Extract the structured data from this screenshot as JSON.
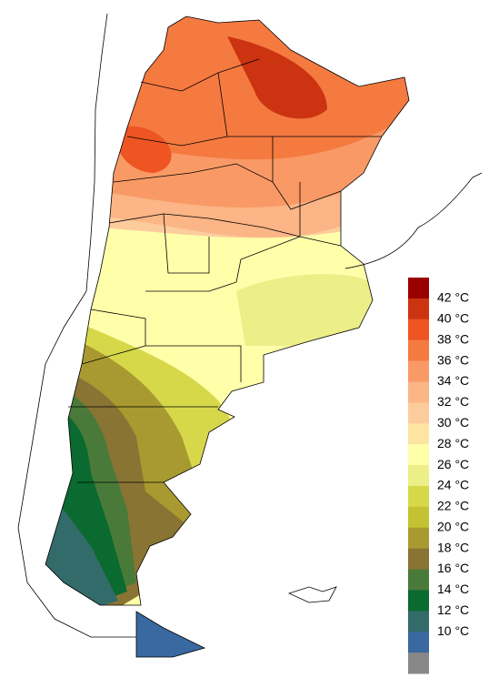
{
  "legend": {
    "labels": [
      "42 °C",
      "40 °C",
      "38 °C",
      "36 °C",
      "34 °C",
      "32 °C",
      "30 °C",
      "28 °C",
      "26 °C",
      "24 °C",
      "22 °C",
      "20 °C",
      "18 °C",
      "16 °C",
      "14 °C",
      "12 °C",
      "10 °C"
    ],
    "colors": [
      "#990000",
      "#cc3311",
      "#ee5522",
      "#f57a40",
      "#f99a66",
      "#fbb586",
      "#fdcc9c",
      "#fde4a0",
      "#ffffaa",
      "#ecee88",
      "#d6d84a",
      "#c2c232",
      "#a89a30",
      "#8a7433",
      "#4a7a3a",
      "#0a6a30",
      "#336a6a",
      "#3a68a0",
      "#888888"
    ]
  }
}
